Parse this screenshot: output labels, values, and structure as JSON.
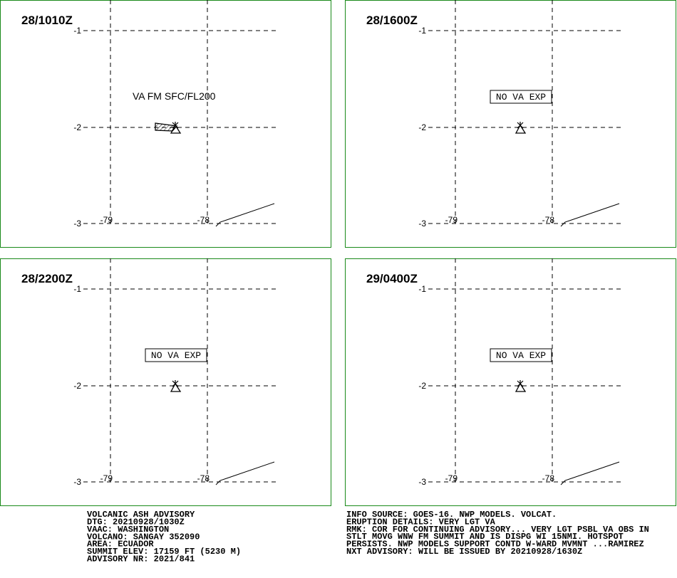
{
  "header": {
    "title": "VOLCANIC ASH ADVISORY"
  },
  "panels": [
    {
      "time": "28/1010Z",
      "annotation": "VA FM SFC/FL200"
    },
    {
      "time": "28/1600Z",
      "annotation": "NO VA EXP"
    },
    {
      "time": "28/2200Z",
      "annotation": "NO VA EXP"
    },
    {
      "time": "29/0400Z",
      "annotation": "NO VA EXP"
    }
  ],
  "lat_labels": [
    "-1",
    "-2",
    "-3"
  ],
  "lon_labels": [
    "-79",
    "-78"
  ],
  "footer_left": [
    "DTG: 20210928/1030Z",
    "VAAC: WASHINGTON",
    "VOLCANO: SANGAY 352090",
    "AREA: ECUADOR",
    "SUMMIT ELEV: 17159 FT (5230 M)",
    "ADVISORY NR: 2021/841"
  ],
  "footer_right": [
    "INFO SOURCE: GOES-16. NWP MODELS. VOLCAT.",
    "ERUPTION DETAILS: VERY LGT VA",
    "RMK: COR FOR CONTINUING ADVISORY... VERY LGT PSBL VA OBS IN",
    "STLT MOVG WNW FM SUMMIT AND IS DISPG WI 15NMI. HOTSPOT",
    "PERSISTS. NWP MODELS SUPPORT CONTD W-WARD MVMNT ...RAMIREZ",
    "NXT ADVISORY: WILL BE ISSUED BY 20210928/1630Z"
  ]
}
